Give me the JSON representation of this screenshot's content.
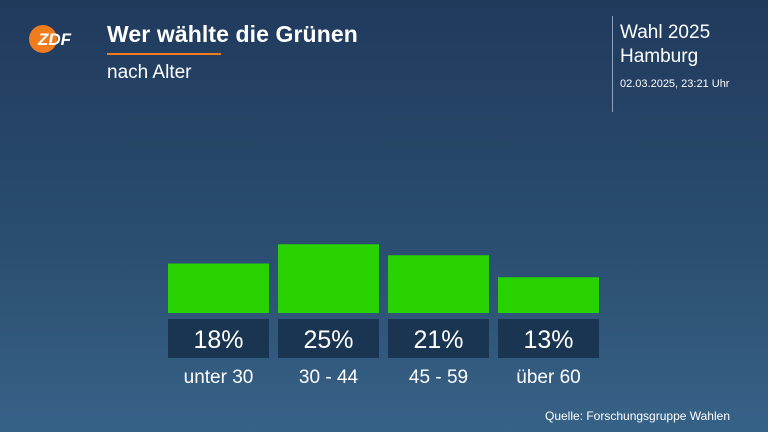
{
  "header": {
    "logo_text": "ZDF",
    "title": "Wer wählte die Grünen",
    "subtitle": "nach Alter"
  },
  "context": {
    "line1": "Wahl 2025",
    "line2": "Hamburg",
    "timestamp": "02.03.2025, 23:21 Uhr"
  },
  "chart_data": {
    "type": "bar",
    "categories": [
      "unter 30",
      "30 - 44",
      "45 - 59",
      "über 60"
    ],
    "values": [
      18,
      25,
      21,
      13
    ],
    "value_labels": [
      "18%",
      "25%",
      "21%",
      "13%"
    ],
    "unit": "%",
    "bar_color": "#28d100",
    "label_box_color": "#1a3552"
  },
  "footer": {
    "source": "Quelle: Forschungsgruppe Wahlen"
  }
}
